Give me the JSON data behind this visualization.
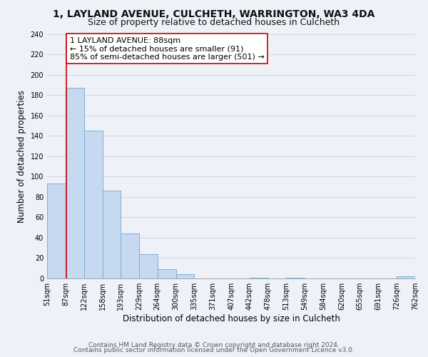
{
  "title": "1, LAYLAND AVENUE, CULCHETH, WARRINGTON, WA3 4DA",
  "subtitle": "Size of property relative to detached houses in Culcheth",
  "xlabel": "Distribution of detached houses by size in Culcheth",
  "ylabel": "Number of detached properties",
  "bar_edges": [
    51,
    87,
    122,
    158,
    193,
    229,
    264,
    300,
    335,
    371,
    407,
    442,
    478,
    513,
    549,
    584,
    620,
    655,
    691,
    726,
    762
  ],
  "bar_heights": [
    93,
    187,
    145,
    86,
    44,
    24,
    9,
    4,
    0,
    0,
    0,
    1,
    0,
    1,
    0,
    0,
    0,
    0,
    0,
    2
  ],
  "bar_color": "#c6d9f1",
  "bar_edge_color": "#7bafd4",
  "vline_x": 88,
  "vline_color": "#cc0000",
  "annotation_line1": "1 LAYLAND AVENUE: 88sqm",
  "annotation_line2": "← 15% of detached houses are smaller (91)",
  "annotation_line3": "85% of semi-detached houses are larger (501) →",
  "annotation_box_color": "white",
  "annotation_box_edgecolor": "#cc0000",
  "ylim": [
    0,
    240
  ],
  "yticks": [
    0,
    20,
    40,
    60,
    80,
    100,
    120,
    140,
    160,
    180,
    200,
    220,
    240
  ],
  "tick_labels": [
    "51sqm",
    "87sqm",
    "122sqm",
    "158sqm",
    "193sqm",
    "229sqm",
    "264sqm",
    "300sqm",
    "335sqm",
    "371sqm",
    "407sqm",
    "442sqm",
    "478sqm",
    "513sqm",
    "549sqm",
    "584sqm",
    "620sqm",
    "655sqm",
    "691sqm",
    "726sqm",
    "762sqm"
  ],
  "footer_line1": "Contains HM Land Registry data © Crown copyright and database right 2024.",
  "footer_line2": "Contains public sector information licensed under the Open Government Licence v3.0.",
  "background_color": "#eef2f8",
  "grid_color": "#d0d8e8",
  "title_fontsize": 10,
  "subtitle_fontsize": 9,
  "axis_label_fontsize": 8.5,
  "tick_fontsize": 7,
  "annotation_fontsize": 8,
  "footer_fontsize": 6.5
}
